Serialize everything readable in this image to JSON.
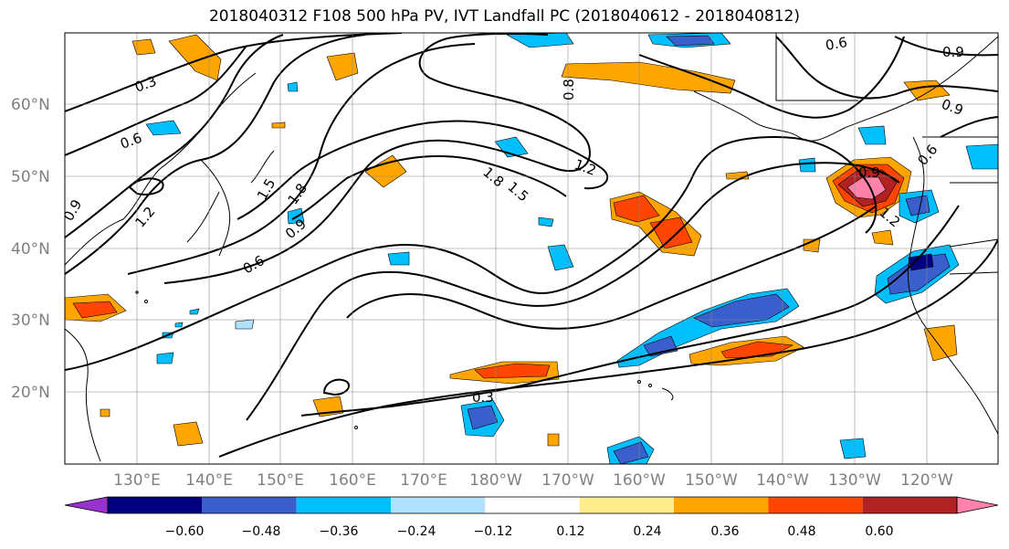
{
  "title": "2018040312 F108 500 hPa PV, IVT Landfall PC (2018040612 - 2018040812)",
  "axes": {
    "lat_labels": [
      "60°N",
      "50°N",
      "40°N",
      "30°N",
      "20°N"
    ],
    "lon_labels": [
      "130°E",
      "140°E",
      "150°E",
      "160°E",
      "170°E",
      "180°W",
      "170°W",
      "160°W",
      "150°W",
      "140°W",
      "130°W",
      "120°W"
    ]
  },
  "colorbar": {
    "colors": [
      "#9932cc",
      "#000080",
      "#3a5fcd",
      "#00bfff",
      "#b0e2ff",
      "#ffffff",
      "#ffec8b",
      "#ffa500",
      "#ff4500",
      "#b22222",
      "#ff82ab"
    ],
    "labels": [
      "−0.60",
      "−0.48",
      "−0.36",
      "−0.24",
      "−0.12",
      "0.12",
      "0.24",
      "0.36",
      "0.48",
      "0.60"
    ]
  },
  "contour_labels": [
    "0.3",
    "0.6",
    "0.9",
    "1.2",
    "1.5",
    "1.8",
    "0.6",
    "0.9",
    "1.5",
    "1.8",
    "1.2",
    "0.8",
    "0.3",
    "0.6",
    "0.9",
    "0.9",
    "0.6",
    "1.2",
    "0.9"
  ]
}
